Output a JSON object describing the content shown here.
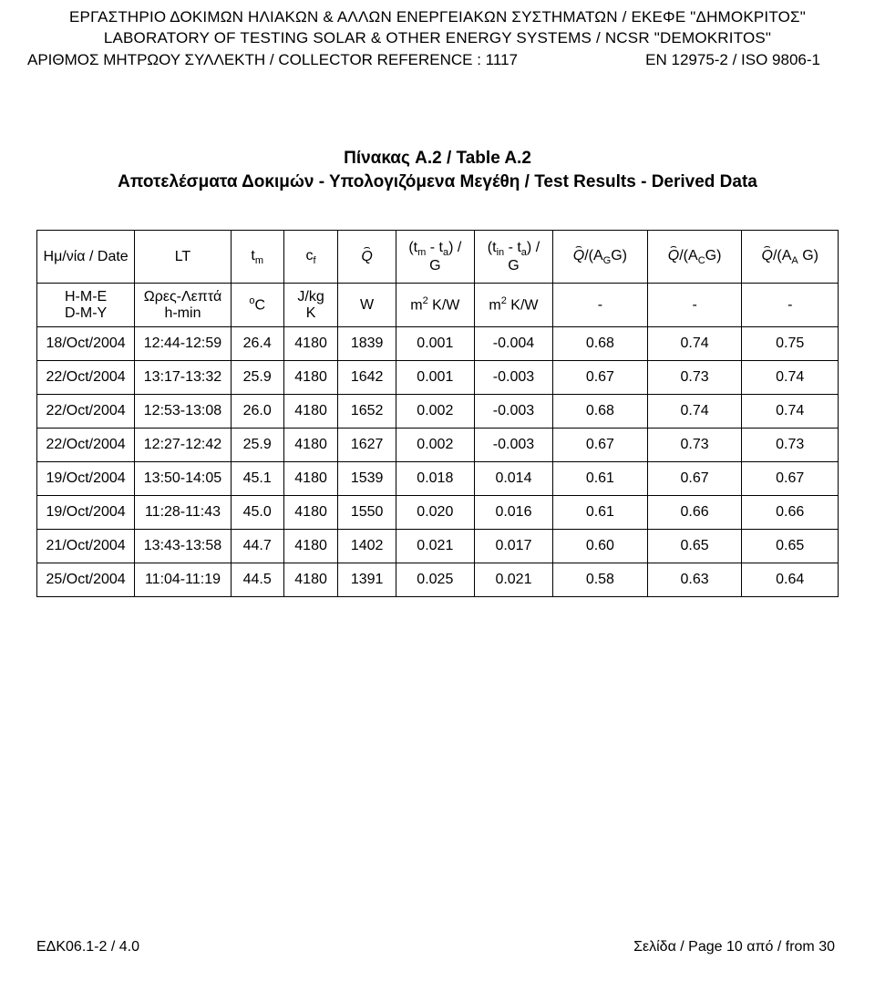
{
  "header": {
    "line1": "ΕΡΓΑΣΤΗΡΙΟ ΔΟΚΙΜΩΝ ΗΛΙΑΚΩΝ & ΑΛΛΩΝ ΕΝΕΡΓΕΙΑΚΩΝ ΣΥΣΤΗΜΑΤΩΝ / ΕΚΕΦΕ \"ΔΗΜΟΚΡΙΤΟΣ\"",
    "line2": "LABORATORY OF TESTING SOLAR & OTHER ENERGY SYSTEMS / NCSR \"DEMOKRITOS\"",
    "ref_left": "ΑΡΙΘΜΟΣ ΜΗΤΡΩΟΥ ΣΥΛΛΕΚΤΗ / COLLECTOR REFERENCE : 1117",
    "ref_right": "EN 12975-2 / ISO 9806-1"
  },
  "title": {
    "line1": "Πίνακας A.2 / Table A.2",
    "line2": "Αποτελέσματα Δοκιμών - Υπολογιζόμενα Μεγέθη / Test Results - Derived Data"
  },
  "table": {
    "header_row": {
      "c0": "Ημ/νία / Date",
      "c1": "LT",
      "c2_prefix": "t",
      "c2_sub": "m",
      "c3_prefix": "c",
      "c3_sub": "f",
      "c4_sym": "Q",
      "c5_top": "(t",
      "c5_sub1": "m",
      "c5_mid": " - t",
      "c5_sub2": "a",
      "c5_end": ") /",
      "c5_bot": "G",
      "c6_top": "(t",
      "c6_sub1": "in",
      "c6_mid": " - t",
      "c6_sub2": "a",
      "c6_end": ") /",
      "c6_bot": "G",
      "c7_q": "Q",
      "c7_text": "/(A",
      "c7_sub": "G",
      "c7_end": "G)",
      "c8_q": "Q",
      "c8_text": "/(A",
      "c8_sub": "C",
      "c8_end": "G)",
      "c9_q": "Q",
      "c9_text": "/(A",
      "c9_sub": "A",
      "c9_end": " G)"
    },
    "units_row": {
      "c0_top": "Η-Μ-Ε",
      "c0_bot": "D-M-Y",
      "c1_top": "Ωρες-Λεπτά",
      "c1_bot": "h-min",
      "c2_sup": "o",
      "c2_text": "C",
      "c3_top": "J/kg",
      "c3_bot": "K",
      "c4": "W",
      "c5_pre": "m",
      "c5_sup": "2",
      "c5_post": " K/W",
      "c6_pre": "m",
      "c6_sup": "2",
      "c6_post": " K/W",
      "c7": "-",
      "c8": "-",
      "c9": "-"
    },
    "rows": [
      [
        "18/Oct/2004",
        "12:44-12:59",
        "26.4",
        "4180",
        "1839",
        "0.001",
        "-0.004",
        "0.68",
        "0.74",
        "0.75"
      ],
      [
        "22/Oct/2004",
        "13:17-13:32",
        "25.9",
        "4180",
        "1642",
        "0.001",
        "-0.003",
        "0.67",
        "0.73",
        "0.74"
      ],
      [
        "22/Oct/2004",
        "12:53-13:08",
        "26.0",
        "4180",
        "1652",
        "0.002",
        "-0.003",
        "0.68",
        "0.74",
        "0.74"
      ],
      [
        "22/Oct/2004",
        "12:27-12:42",
        "25.9",
        "4180",
        "1627",
        "0.002",
        "-0.003",
        "0.67",
        "0.73",
        "0.73"
      ],
      [
        "19/Oct/2004",
        "13:50-14:05",
        "45.1",
        "4180",
        "1539",
        "0.018",
        "0.014",
        "0.61",
        "0.67",
        "0.67"
      ],
      [
        "19/Oct/2004",
        "11:28-11:43",
        "45.0",
        "4180",
        "1550",
        "0.020",
        "0.016",
        "0.61",
        "0.66",
        "0.66"
      ],
      [
        "21/Oct/2004",
        "13:43-13:58",
        "44.7",
        "4180",
        "1402",
        "0.021",
        "0.017",
        "0.60",
        "0.65",
        "0.65"
      ],
      [
        "25/Oct/2004",
        "11:04-11:19",
        "44.5",
        "4180",
        "1391",
        "0.025",
        "0.021",
        "0.58",
        "0.63",
        "0.64"
      ]
    ],
    "col_widths_pct": [
      12.2,
      12.0,
      6.6,
      6.8,
      7.2,
      9.8,
      9.8,
      11.8,
      11.8,
      12.0
    ]
  },
  "footer": {
    "left": "ΕΔΚ06.1-2 / 4.0",
    "right_label": "Σελίδα / Page ",
    "right_page": "10",
    "right_of": " από / from ",
    "right_total": "30"
  }
}
